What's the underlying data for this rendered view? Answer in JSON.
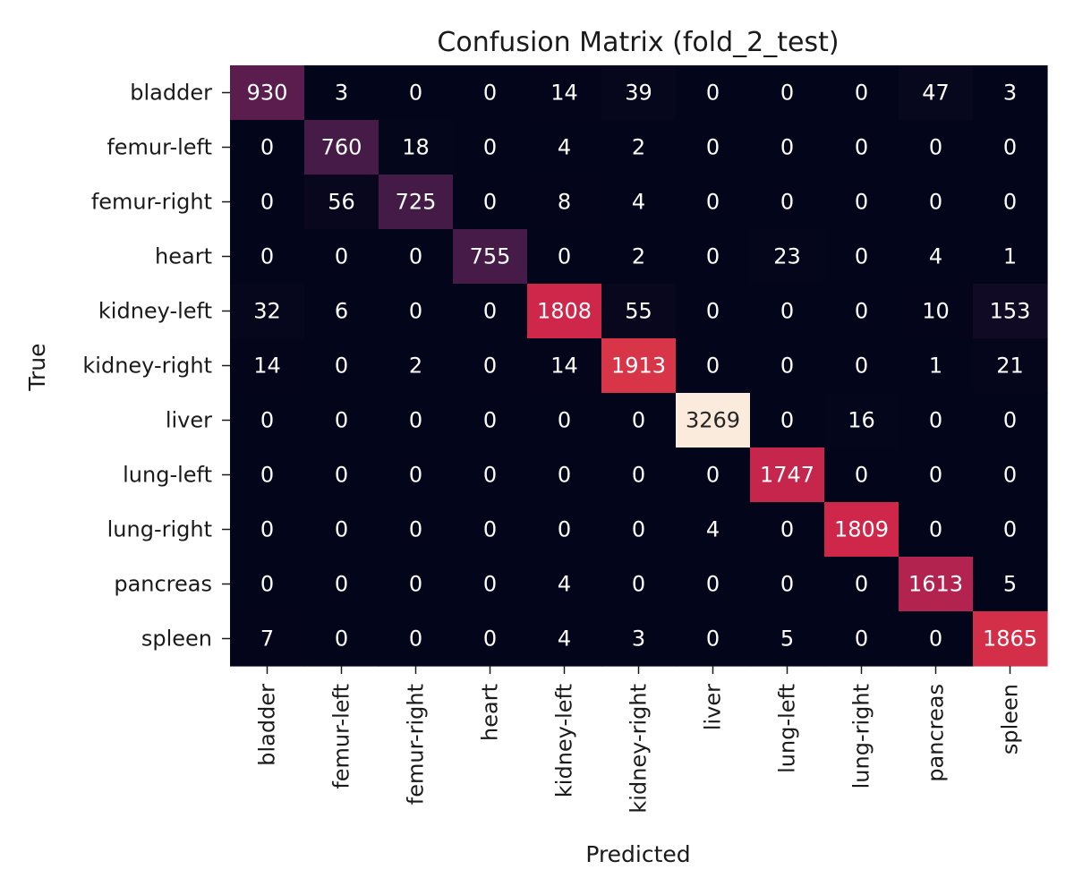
{
  "chart_data": {
    "type": "heatmap",
    "title": "Confusion Matrix (fold_2_test)",
    "xlabel": "Predicted",
    "ylabel": "True",
    "row_labels": [
      "bladder",
      "femur-left",
      "femur-right",
      "heart",
      "kidney-left",
      "kidney-right",
      "liver",
      "lung-left",
      "lung-right",
      "pancreas",
      "spleen"
    ],
    "col_labels": [
      "bladder",
      "femur-left",
      "femur-right",
      "heart",
      "kidney-left",
      "kidney-right",
      "liver",
      "lung-left",
      "lung-right",
      "pancreas",
      "spleen"
    ],
    "values": [
      [
        930,
        3,
        0,
        0,
        14,
        39,
        0,
        0,
        0,
        47,
        3
      ],
      [
        0,
        760,
        18,
        0,
        4,
        2,
        0,
        0,
        0,
        0,
        0
      ],
      [
        0,
        56,
        725,
        0,
        8,
        4,
        0,
        0,
        0,
        0,
        0
      ],
      [
        0,
        0,
        0,
        755,
        0,
        2,
        0,
        23,
        0,
        4,
        1
      ],
      [
        32,
        6,
        0,
        0,
        1808,
        55,
        0,
        0,
        0,
        10,
        153
      ],
      [
        14,
        0,
        2,
        0,
        14,
        1913,
        0,
        0,
        0,
        1,
        21
      ],
      [
        0,
        0,
        0,
        0,
        0,
        0,
        3269,
        0,
        16,
        0,
        0
      ],
      [
        0,
        0,
        0,
        0,
        0,
        0,
        0,
        1747,
        0,
        0,
        0
      ],
      [
        0,
        0,
        0,
        0,
        0,
        0,
        4,
        0,
        1809,
        0,
        0
      ],
      [
        0,
        0,
        0,
        0,
        4,
        0,
        0,
        0,
        0,
        1613,
        5
      ],
      [
        7,
        0,
        0,
        0,
        4,
        3,
        0,
        5,
        0,
        0,
        1865
      ]
    ],
    "colormap": "rocket",
    "colorbar": false,
    "grid": false
  }
}
